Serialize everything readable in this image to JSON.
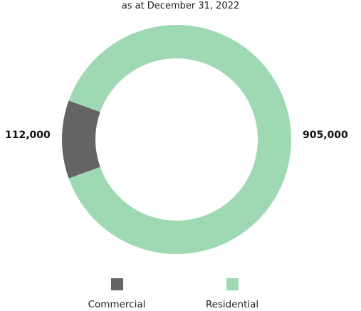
{
  "chart_data": {
    "type": "pie",
    "subtitle": "as at December 31, 2022",
    "style": "donut",
    "categories": [
      "Commercial",
      "Residential"
    ],
    "values": [
      112000,
      905000
    ],
    "value_labels": [
      "112,000",
      "905,000"
    ],
    "colors": {
      "Commercial": "#646464",
      "Residential": "#9ed9b4"
    },
    "legend_placement": "bottom"
  }
}
